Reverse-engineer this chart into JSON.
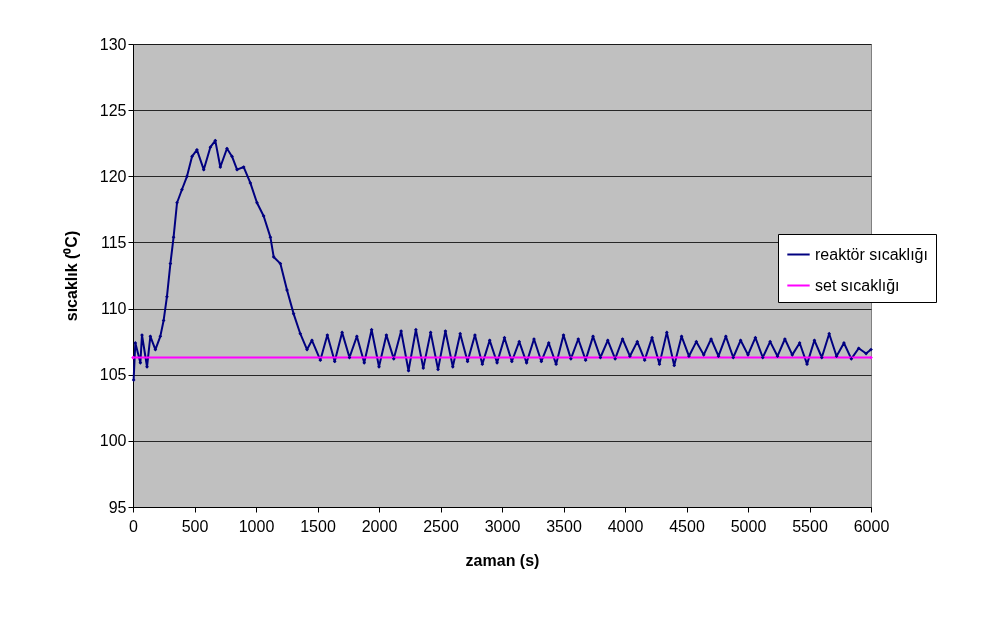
{
  "chart_data": {
    "type": "line",
    "xlabel": "zaman (s)",
    "ylabel": "sıcaklık (⁰C)",
    "xlim": [
      0,
      6000
    ],
    "xticks": [
      0,
      500,
      1000,
      1500,
      2000,
      2500,
      3000,
      3500,
      4000,
      4500,
      5000,
      5500,
      6000
    ],
    "ylim": [
      95,
      130
    ],
    "yticks": [
      95,
      100,
      105,
      110,
      115,
      120,
      125,
      130
    ],
    "grid": "y",
    "legend": "right",
    "marker": "diamond",
    "series": [
      {
        "name": "reaktör sıcaklığı",
        "color": "#000080",
        "x": [
          5,
          19,
          60,
          73,
          114,
          141,
          182,
          222,
          249,
          276,
          304,
          330,
          358,
          398,
          439,
          480,
          520,
          575,
          629,
          669,
          710,
          764,
          805,
          846,
          900,
          954,
          1008,
          1062,
          1117,
          1144,
          1198,
          1252,
          1306,
          1360,
          1415,
          1455,
          1523,
          1580,
          1640,
          1700,
          1760,
          1820,
          1880,
          1940,
          2000,
          2060,
          2120,
          2180,
          2240,
          2300,
          2360,
          2420,
          2480,
          2540,
          2600,
          2660,
          2720,
          2780,
          2840,
          2900,
          2960,
          3020,
          3080,
          3140,
          3200,
          3260,
          3320,
          3380,
          3440,
          3500,
          3560,
          3620,
          3680,
          3740,
          3800,
          3860,
          3920,
          3980,
          4040,
          4100,
          4160,
          4220,
          4280,
          4340,
          4400,
          4460,
          4520,
          4580,
          4640,
          4700,
          4760,
          4820,
          4880,
          4940,
          5000,
          5060,
          5120,
          5180,
          5240,
          5300,
          5360,
          5420,
          5480,
          5540,
          5600,
          5660,
          5720,
          5780,
          5840,
          5900,
          5960,
          6000
        ],
        "values": [
          104.6,
          107.4,
          105.9,
          108.0,
          105.6,
          107.9,
          106.9,
          107.9,
          109.1,
          110.9,
          113.4,
          115.4,
          118.0,
          119.0,
          120.0,
          121.5,
          122.0,
          120.5,
          122.2,
          122.7,
          120.7,
          122.1,
          121.5,
          120.5,
          120.7,
          119.5,
          118.0,
          117.0,
          115.4,
          113.9,
          113.4,
          111.4,
          109.6,
          108.1,
          106.9,
          107.6,
          106.1,
          108.0,
          106.0,
          108.2,
          106.3,
          107.9,
          105.9,
          108.4,
          105.6,
          108.0,
          106.2,
          108.3,
          105.3,
          108.4,
          105.5,
          108.2,
          105.4,
          108.3,
          105.6,
          108.1,
          106.0,
          108.0,
          105.8,
          107.6,
          105.9,
          107.8,
          106.0,
          107.5,
          105.9,
          107.7,
          106.0,
          107.4,
          105.8,
          108.0,
          106.2,
          107.7,
          106.1,
          107.9,
          106.3,
          107.6,
          106.2,
          107.7,
          106.4,
          107.5,
          106.1,
          107.8,
          105.8,
          108.2,
          105.7,
          107.9,
          106.4,
          107.5,
          106.5,
          107.7,
          106.4,
          107.9,
          106.3,
          107.6,
          106.5,
          107.8,
          106.3,
          107.5,
          106.4,
          107.7,
          106.5,
          107.4,
          105.8,
          107.6,
          106.3,
          108.1,
          106.4,
          107.4,
          106.2,
          107.0,
          106.6,
          106.9
        ]
      },
      {
        "name": "set sıcaklığı",
        "color": "#ff00ff",
        "x": [
          0,
          6000
        ],
        "values": [
          106.3,
          106.3
        ]
      }
    ]
  }
}
